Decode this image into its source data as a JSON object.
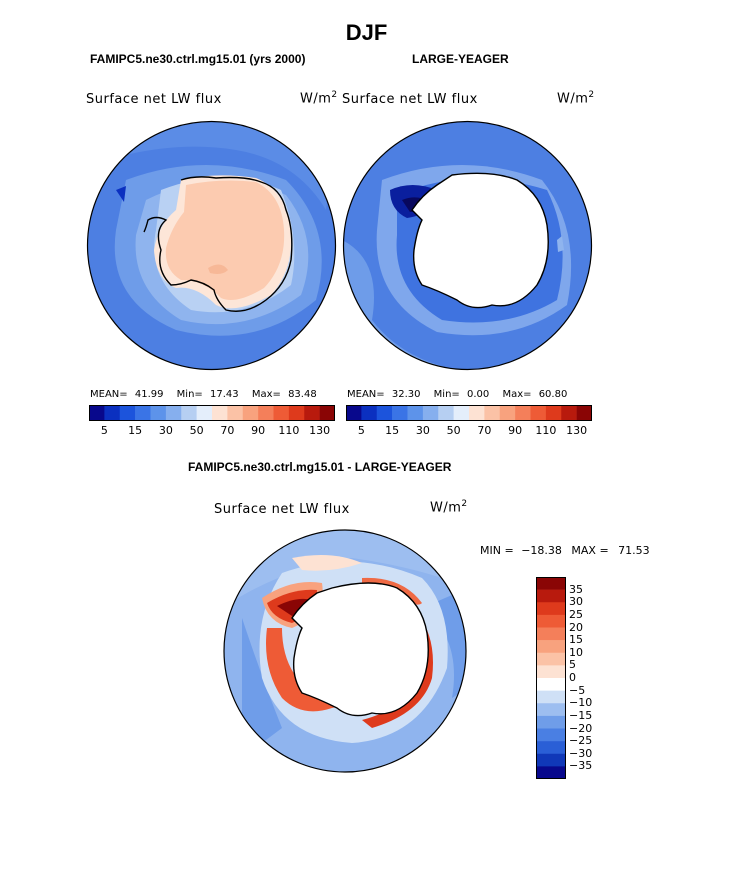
{
  "title": "DJF",
  "top_left": {
    "case_title": "FAMIPC5.ne30.ctrl.mg15.01 (yrs 2000)",
    "variable": "Surface net LW flux",
    "units_base": "W/m",
    "units_exp": "2",
    "mean_label": "MEAN=",
    "mean_value": "41.99",
    "min_label": "Min=",
    "min_value": "17.43",
    "max_label": "Max=",
    "max_value": "83.48"
  },
  "top_right": {
    "case_title": "LARGE-YEAGER",
    "variable": "Surface net LW flux",
    "units_base": "W/m",
    "units_exp": "2",
    "mean_label": "MEAN=",
    "mean_value": "32.30",
    "min_label": "Min=",
    "min_value": "0.00",
    "max_label": "Max=",
    "max_value": "60.80"
  },
  "top_colorbar": {
    "tick_labels": [
      "5",
      "15",
      "30",
      "50",
      "70",
      "90",
      "110",
      "130"
    ],
    "colors": [
      "#08088c",
      "#0b30c0",
      "#1c54dc",
      "#3a74e6",
      "#5d93ea",
      "#86afee",
      "#b6cff2",
      "#e4eefb",
      "#fde2d3",
      "#fbc2a6",
      "#f8a27e",
      "#f47f5a",
      "#ee5b36",
      "#de3a1c",
      "#b81a0d",
      "#8a0505"
    ]
  },
  "bottom": {
    "case_title": "FAMIPC5.ne30.ctrl.mg15.01 - LARGE-YEAGER",
    "variable": "Surface net LW flux",
    "units_base": "W/m",
    "units_exp": "2",
    "min_label": "MIN =",
    "min_value": "−18.38",
    "max_label": "MAX =",
    "max_value": "71.53"
  },
  "bottom_colorbar": {
    "tick_labels": [
      "35",
      "30",
      "25",
      "20",
      "15",
      "10",
      "5",
      "0",
      "−5",
      "−10",
      "−15",
      "−20",
      "−25",
      "−30",
      "−35"
    ],
    "colors": [
      "#8a0505",
      "#b81a0d",
      "#de3a1c",
      "#ee5b36",
      "#f47f5a",
      "#f8a27e",
      "#fbc2a6",
      "#fde2d3",
      "#ffffff",
      "#cfe0f6",
      "#9dbef0",
      "#6f9de9",
      "#4a7fe3",
      "#2a5fd6",
      "#1038b8",
      "#08088c"
    ]
  },
  "map_palette": {
    "ocean_mid": "#5d8de6",
    "ocean_light": "#8fb4ee",
    "ocean_pale": "#b9d1f3",
    "land_warm": "#fccbb0",
    "land_pale": "#fde6d8",
    "deep_blue": "#0a1f9e",
    "red_strong": "#c8200e",
    "red_mid": "#ef6a45",
    "red_light": "#f8ad8c"
  }
}
